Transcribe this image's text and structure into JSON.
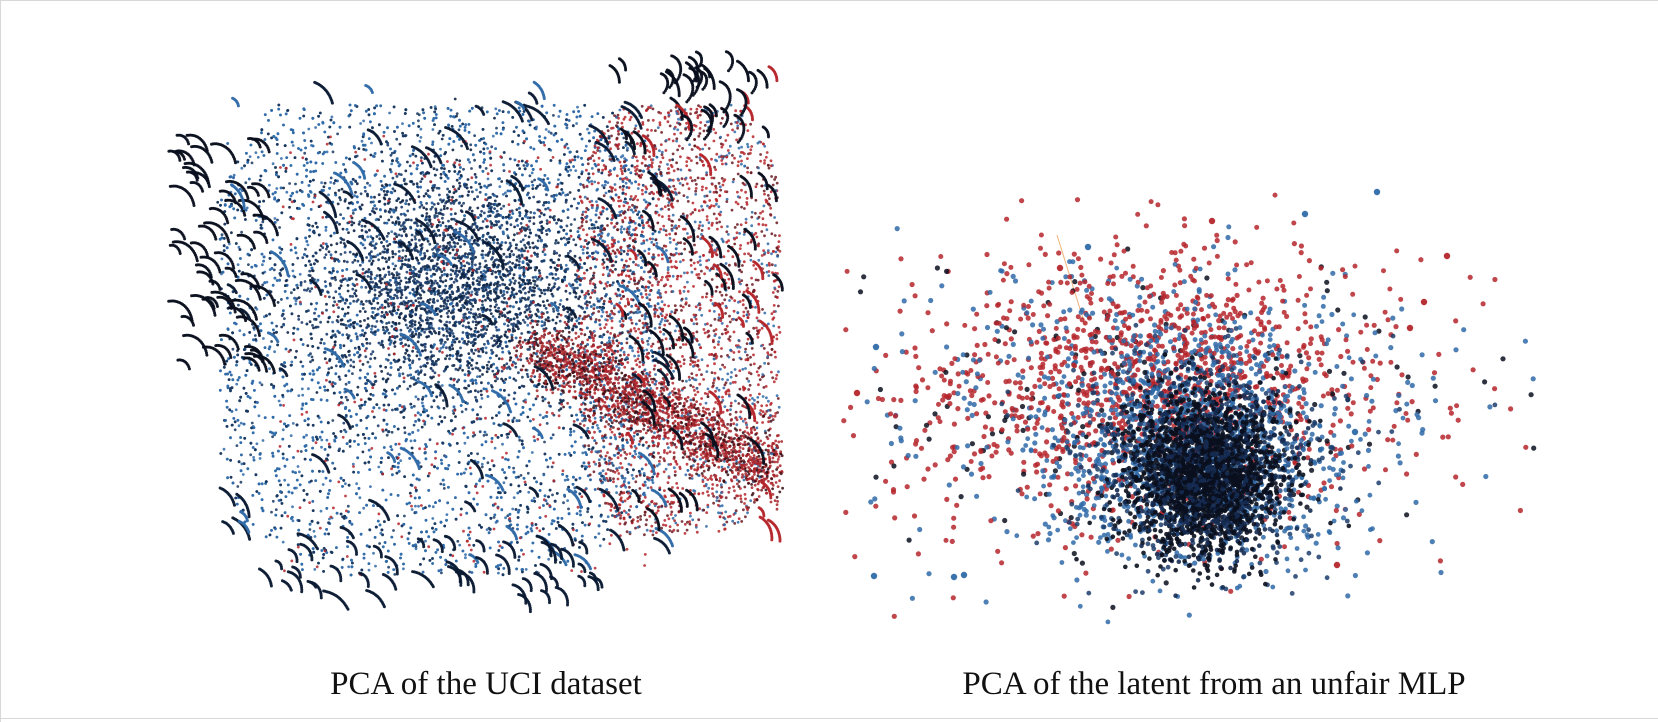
{
  "chart_data": [
    {
      "type": "scatter",
      "title": "PCA of the UCI dataset",
      "grid": false,
      "axes_visible": false,
      "series": [
        {
          "color": "#1f4e87",
          "density": "dense, spread across left and center"
        },
        {
          "color": "#b5262b",
          "density": "concentrated on the right side"
        },
        {
          "color": "#0a0f1e",
          "density": "dark streaks along diagonal bands"
        }
      ]
    },
    {
      "type": "scatter",
      "title": "PCA of the latent from an unfair MLP",
      "grid": false,
      "axes_visible": false,
      "series": [
        {
          "color": "#1f4e87",
          "density": "widely scattered, denser lower center"
        },
        {
          "color": "#b5262b",
          "density": "widely scattered, upper and left"
        },
        {
          "color": "#0a0f1e",
          "density": "dense core lower right of center"
        }
      ]
    }
  ],
  "colors": {
    "blue": "#2f6aa8",
    "red": "#b5262b",
    "black": "#0a0f1e",
    "background": "#ffffff"
  }
}
